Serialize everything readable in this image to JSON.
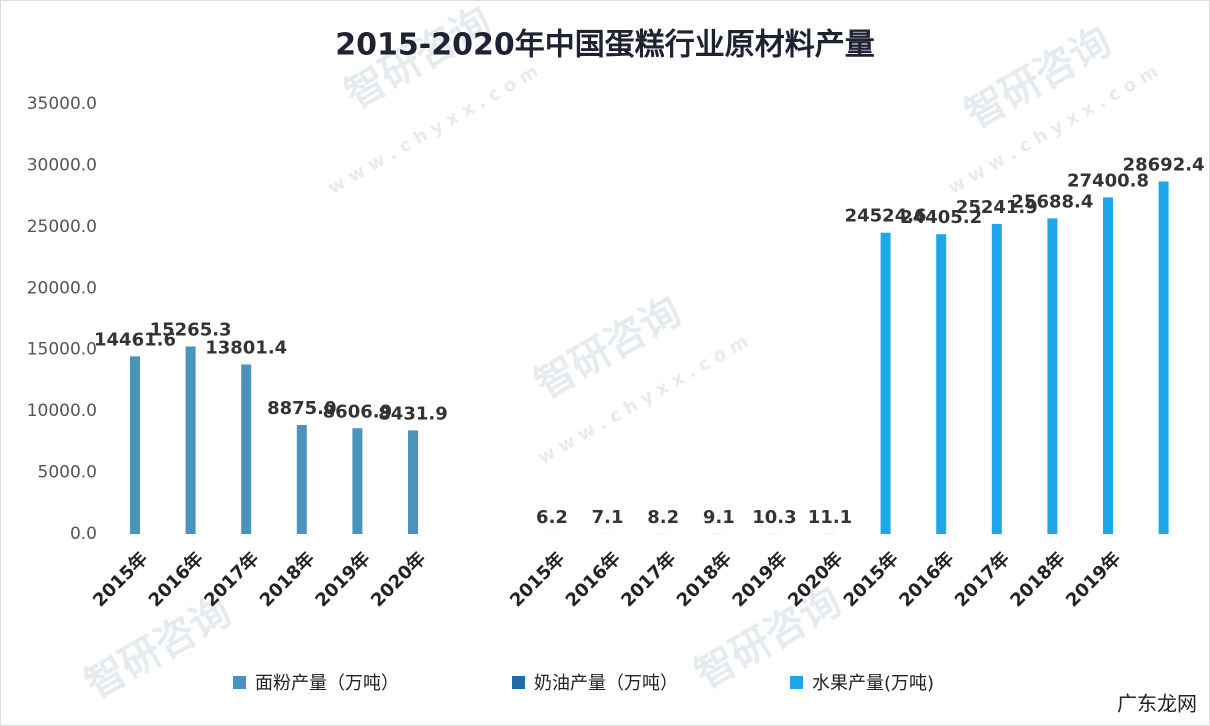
{
  "chart_data": {
    "type": "bar",
    "title": "2015-2020年中国蛋糕行业原材料产量",
    "categories": [
      "2015年",
      "2016年",
      "2017年",
      "2018年",
      "2019年",
      "2020年",
      "2015年",
      "2016年",
      "2017年",
      "2018年",
      "2019年",
      "2020年",
      "2015年",
      "2016年",
      "2017年",
      "2018年",
      "2019年",
      null
    ],
    "series": [
      {
        "name": "面粉产量（万吨）",
        "color": "#4a93bd",
        "values": [
          14461.6,
          15265.3,
          13801.4,
          8875.0,
          8606.9,
          8431.9,
          null,
          null,
          null,
          null,
          null,
          null,
          null,
          null,
          null,
          null,
          null,
          null
        ],
        "value_labels": [
          "14461.6",
          "15265.3",
          "13801.4",
          "8875.0",
          "8606.9",
          "8431.9",
          null,
          null,
          null,
          null,
          null,
          null,
          null,
          null,
          null,
          null,
          null,
          null
        ]
      },
      {
        "name": "奶油产量（万吨）",
        "color": "#1f6aa8",
        "values": [
          null,
          null,
          null,
          null,
          null,
          null,
          6.2,
          7.1,
          8.2,
          9.1,
          10.3,
          11.1,
          null,
          null,
          null,
          null,
          null,
          null
        ],
        "value_labels": [
          null,
          null,
          null,
          null,
          null,
          null,
          "6.2",
          "7.1",
          "8.2",
          "9.1",
          "10.3",
          "11.1",
          null,
          null,
          null,
          null,
          null,
          null
        ]
      },
      {
        "name": "水果产量(万吨)",
        "color": "#1ea6ea",
        "values": [
          null,
          null,
          null,
          null,
          null,
          null,
          null,
          null,
          null,
          null,
          null,
          null,
          24524.6,
          24405.2,
          25241.9,
          25688.4,
          27400.8,
          28692.4
        ],
        "value_labels": [
          null,
          null,
          null,
          null,
          null,
          null,
          null,
          null,
          null,
          null,
          null,
          null,
          "24524.6",
          "24405.2",
          "25241.9",
          "25688.4",
          "27400.8",
          "28692.4"
        ]
      }
    ],
    "ylim": [
      0,
      35000
    ],
    "yticks": [
      {
        "value": 0,
        "label": "0.0"
      },
      {
        "value": 5000,
        "label": "5000.0"
      },
      {
        "value": 10000,
        "label": "10000.0"
      },
      {
        "value": 15000,
        "label": "15000.0"
      },
      {
        "value": 20000,
        "label": "20000.0"
      },
      {
        "value": 25000,
        "label": "25000.0"
      },
      {
        "value": 30000,
        "label": "30000.0"
      },
      {
        "value": 35000,
        "label": "35000.0"
      }
    ],
    "grid": false,
    "legend": "bottom",
    "annotations": [
      "智研咨询",
      "w w w . c h y x x . c o m",
      "广东龙网"
    ]
  }
}
